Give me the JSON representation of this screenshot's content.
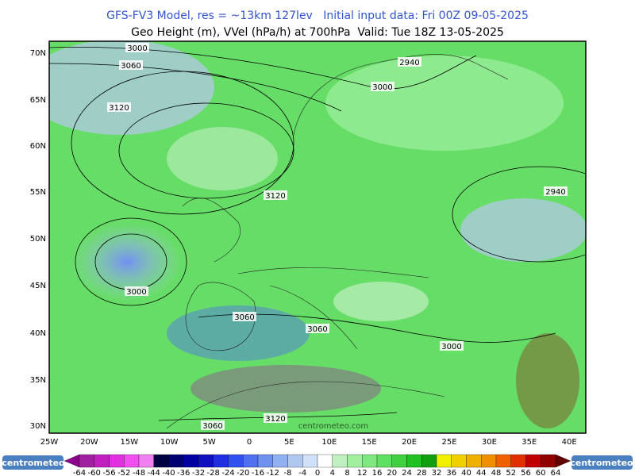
{
  "header": {
    "line1": "GFS-FV3 Model, res = ~13km 127lev   Initial input data: Fri 00Z 09-05-2025",
    "line2": "Geo Height (m), VVel (hPa/h) at 700hPa  Valid: Tue 18Z 13-05-2025"
  },
  "map": {
    "lat_labels": [
      "70N",
      "65N",
      "60N",
      "55N",
      "50N",
      "45N",
      "40N",
      "35N",
      "30N"
    ],
    "lon_labels": [
      "25W",
      "20W",
      "15W",
      "10W",
      "5W",
      "0",
      "5E",
      "10E",
      "15E",
      "20E",
      "25E",
      "30E",
      "35E",
      "40E"
    ],
    "contour_labels": [
      "3000",
      "3060",
      "3120",
      "3000",
      "2940",
      "3120",
      "2940",
      "3000",
      "3060",
      "3060",
      "3000",
      "3060",
      "3120"
    ],
    "watermark": "centrometeo.com"
  },
  "colorbar": {
    "labels": [
      "-64",
      "-60",
      "-56",
      "-52",
      "-48",
      "-44",
      "-40",
      "-36",
      "-32",
      "-28",
      "-24",
      "-20",
      "-16",
      "-12",
      "-8",
      "-4",
      "0",
      "4",
      "8",
      "12",
      "16",
      "20",
      "24",
      "28",
      "32",
      "36",
      "40",
      "44",
      "48",
      "52",
      "56",
      "60",
      "64"
    ],
    "colors": [
      "#8b008b",
      "#a020a0",
      "#c020c0",
      "#e030e0",
      "#f050f0",
      "#f080f0",
      "#000040",
      "#000070",
      "#0000a0",
      "#1010c0",
      "#2030e0",
      "#3050f0",
      "#5070f0",
      "#7090f0",
      "#90b0f0",
      "#b0c8f0",
      "#d0e0f8",
      "#ffffff",
      "#c0f0c0",
      "#a0f0a0",
      "#80e880",
      "#60e060",
      "#40d040",
      "#20c020",
      "#10a010",
      "#f0f000",
      "#f0d000",
      "#f0b000",
      "#f09000",
      "#f06000",
      "#e03000",
      "#c00000",
      "#900000",
      "#600000"
    ]
  },
  "logos": [
    "centrometeo",
    "centrometeo"
  ]
}
